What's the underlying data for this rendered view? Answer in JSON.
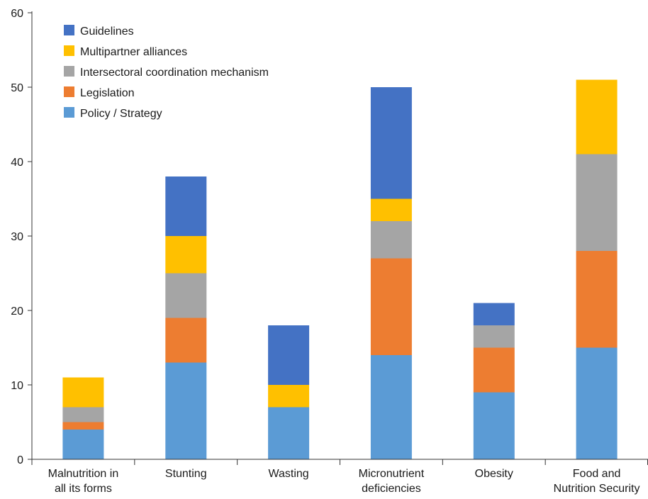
{
  "chart_data": {
    "type": "bar",
    "stacked": true,
    "categories": [
      [
        "Malnutrition in",
        "all its forms"
      ],
      [
        "Stunting"
      ],
      [
        "Wasting"
      ],
      [
        "Micronutrient",
        "deficiencies"
      ],
      [
        "Obesity"
      ],
      [
        "Food and",
        "Nutrition Security"
      ]
    ],
    "series": [
      {
        "name": "Policy / Strategy",
        "color": "#5B9BD5",
        "values": [
          4,
          13,
          7,
          14,
          9,
          15
        ]
      },
      {
        "name": "Legislation",
        "color": "#ED7D31",
        "values": [
          1,
          6,
          0,
          13,
          6,
          13
        ]
      },
      {
        "name": "Intersectoral coordination mechanism",
        "color": "#A5A5A5",
        "values": [
          2,
          6,
          0,
          5,
          3,
          13
        ]
      },
      {
        "name": "Multipartner alliances",
        "color": "#FFC000",
        "values": [
          4,
          5,
          3,
          3,
          0,
          10
        ]
      },
      {
        "name": "Guidelines",
        "color": "#4472C4",
        "values": [
          0,
          8,
          8,
          15,
          3,
          0
        ]
      }
    ],
    "ylim": [
      0,
      60
    ],
    "yticks": [
      0,
      10,
      20,
      30,
      40,
      50,
      60
    ],
    "grid": false,
    "legend_position": "top-left",
    "legend_order": [
      "Guidelines",
      "Multipartner alliances",
      "Intersectoral coordination mechanism",
      "Legislation",
      "Policy / Strategy"
    ]
  }
}
